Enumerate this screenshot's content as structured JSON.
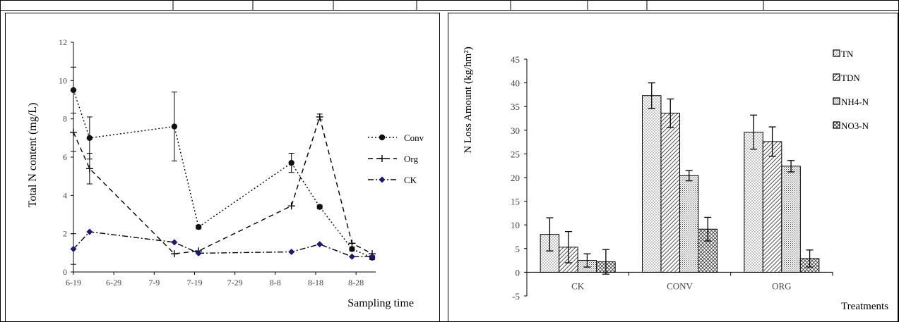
{
  "chart_data": [
    {
      "type": "line",
      "xlabel": "Sampling time",
      "ylabel": "Total N content (mg/L)",
      "ylim": [
        0,
        12
      ],
      "yticks": [
        "0",
        "2",
        "4",
        "6",
        "8",
        "10",
        "12"
      ],
      "xlim": [
        "6-19",
        "9-1"
      ],
      "xticks": [
        "6-19",
        "6-29",
        "7-9",
        "7-19",
        "7-29",
        "8-8",
        "8-18",
        "8-28"
      ],
      "legend_position": "right",
      "series": [
        {
          "name": "Conv",
          "style": "dotted",
          "marker": "circle",
          "points": [
            {
              "x": "6-19",
              "y": 9.5,
              "err": 1.2
            },
            {
              "x": "6-23",
              "y": 7.0,
              "err": 1.1
            },
            {
              "x": "7-14",
              "y": 7.6,
              "err": 1.8
            },
            {
              "x": "7-20",
              "y": 2.35,
              "err": 0.1
            },
            {
              "x": "8-12",
              "y": 5.7,
              "err": 0.5
            },
            {
              "x": "8-19",
              "y": 3.4,
              "err": 0.1
            },
            {
              "x": "8-27",
              "y": 1.2,
              "err": 0.1
            },
            {
              "x": "9-1",
              "y": 0.75,
              "err": 0.1
            }
          ]
        },
        {
          "name": "Org",
          "style": "dashed",
          "marker": "plus",
          "points": [
            {
              "x": "6-19",
              "y": 7.3,
              "err": 1.0
            },
            {
              "x": "6-23",
              "y": 5.4,
              "err": 0.8
            },
            {
              "x": "7-14",
              "y": 0.95,
              "err": 0.0
            },
            {
              "x": "7-20",
              "y": 1.1,
              "err": 0.0
            },
            {
              "x": "8-12",
              "y": 3.45,
              "err": 0.0
            },
            {
              "x": "8-19",
              "y": 8.1,
              "err": 0.15
            },
            {
              "x": "8-27",
              "y": 1.5,
              "err": 0.0
            },
            {
              "x": "9-1",
              "y": 0.95,
              "err": 0.0
            }
          ]
        },
        {
          "name": "CK",
          "style": "dash-dot",
          "marker": "diamond",
          "points": [
            {
              "x": "6-19",
              "y": 1.2,
              "err": 0.8
            },
            {
              "x": "6-23",
              "y": 2.1,
              "err": 0.0
            },
            {
              "x": "7-14",
              "y": 1.55,
              "err": 0.0
            },
            {
              "x": "7-20",
              "y": 0.98,
              "err": 0.0
            },
            {
              "x": "8-12",
              "y": 1.05,
              "err": 0.0
            },
            {
              "x": "8-19",
              "y": 1.45,
              "err": 0.0
            },
            {
              "x": "8-27",
              "y": 0.8,
              "err": 0.0
            },
            {
              "x": "9-1",
              "y": 0.8,
              "err": 0.0
            }
          ]
        }
      ]
    },
    {
      "type": "bar",
      "xlabel": "Treatments",
      "ylabel": "N Loss Amount (kg/hm²)",
      "ylim": [
        -5,
        45
      ],
      "yticks": [
        "-5",
        "0",
        "5",
        "10",
        "15",
        "20",
        "25",
        "30",
        "35",
        "40",
        "45"
      ],
      "categories": [
        "CK",
        "CONV",
        "ORG"
      ],
      "legend_position": "top-right",
      "series": [
        {
          "name": "TN",
          "pattern": "dots",
          "values": [
            8.0,
            37.3,
            29.6
          ],
          "errors": [
            3.5,
            2.7,
            3.6
          ]
        },
        {
          "name": "TDN",
          "pattern": "hatch",
          "values": [
            5.3,
            33.6,
            27.6
          ],
          "errors": [
            3.3,
            3.0,
            3.1
          ]
        },
        {
          "name": "NH4-N",
          "pattern": "fine-dots",
          "values": [
            2.5,
            20.4,
            22.4
          ],
          "errors": [
            1.4,
            1.1,
            1.2
          ]
        },
        {
          "name": "NO3-N",
          "pattern": "crosshatch",
          "values": [
            2.2,
            9.1,
            2.9
          ],
          "errors": [
            2.6,
            2.5,
            1.8
          ]
        }
      ]
    }
  ]
}
